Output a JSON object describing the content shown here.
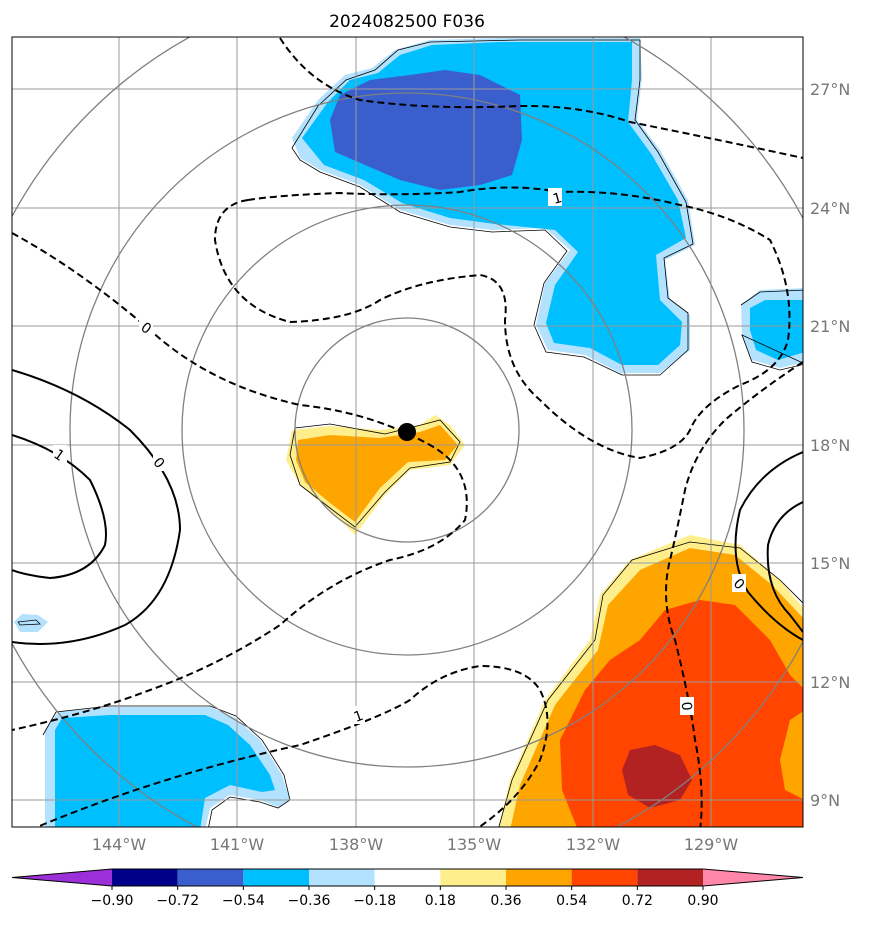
{
  "title": "2024082500 F036",
  "map": {
    "lat_labels": [
      "27°N",
      "24°N",
      "21°N",
      "18°N",
      "15°N",
      "12°N",
      "9°N"
    ],
    "lon_labels": [
      "144°W",
      "141°W",
      "138°W",
      "135°W",
      "132°W",
      "129°W"
    ],
    "contour_labels": [
      "1",
      "0",
      "1",
      "0",
      "0",
      "1",
      "0"
    ],
    "colors": {
      "grid": "#999999",
      "rings": "#808080",
      "axis_text": "#777777"
    }
  },
  "colorbar": {
    "ticks": [
      "−0.90",
      "−0.72",
      "−0.54",
      "−0.36",
      "−0.18",
      "0.18",
      "0.36",
      "0.54",
      "0.72",
      "0.90"
    ],
    "colors": [
      "#9b30d9",
      "#00008b",
      "#3a5fcd",
      "#00bfff",
      "#b3e2ff",
      "#ffffff",
      "#ffee8c",
      "#ffa500",
      "#ff4500",
      "#b22222",
      "#ff88aa"
    ]
  }
}
